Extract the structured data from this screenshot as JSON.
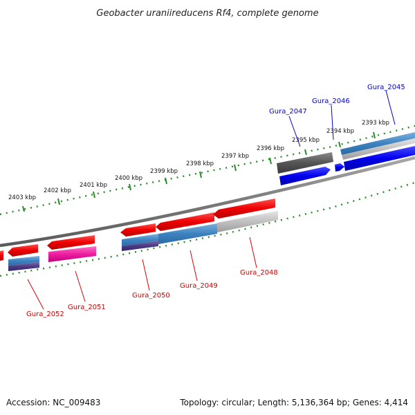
{
  "title": "Geobacter uraniireducens Rf4, complete genome",
  "footer": {
    "accession": "Accession: NC_009483",
    "topology": "Topology: circular; Length: 5,136,364 bp; Genes: 4,414"
  },
  "ticks": [
    "2403 kbp",
    "2402 kbp",
    "2401 kbp",
    "2400 kbp",
    "2399 kbp",
    "2398 kbp",
    "2397 kbp",
    "2396 kbp",
    "2395 kbp",
    "2394 kbp",
    "2393 kbp"
  ],
  "genes_forward": [
    {
      "name": "Gura_2047",
      "color": "#0a0ad2"
    },
    {
      "name": "Gura_2046",
      "color": "#0a0ad2"
    },
    {
      "name": "Gura_2045",
      "color": "#0a0ad2"
    }
  ],
  "genes_reverse": [
    {
      "name": "Gura_2052",
      "color": "#d20a0a"
    },
    {
      "name": "Gura_2051",
      "color": "#d20a0a"
    },
    {
      "name": "Gura_2050",
      "color": "#d20a0a"
    },
    {
      "name": "Gura_2049",
      "color": "#d20a0a"
    },
    {
      "name": "Gura_2048",
      "color": "#d20a0a"
    }
  ]
}
